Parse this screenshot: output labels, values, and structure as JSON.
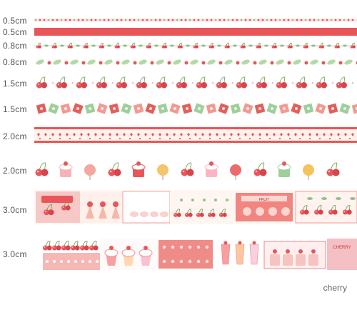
{
  "labels": [
    "0.5cm",
    "0.5cm",
    "0.8cm",
    "0.8cm",
    "1.5cm",
    "1.5cm",
    "2.0cm",
    "2.0cm",
    "3.0cm",
    "3.0cm"
  ],
  "tapes": {
    "t7_label": "FRUIT",
    "t9_label": "CHERRY"
  },
  "caption": "cherry",
  "colors": {
    "red": "#e8565a",
    "pink": "#f4b8b8",
    "green": "#8fc48a",
    "cream": "#fff3ec"
  }
}
